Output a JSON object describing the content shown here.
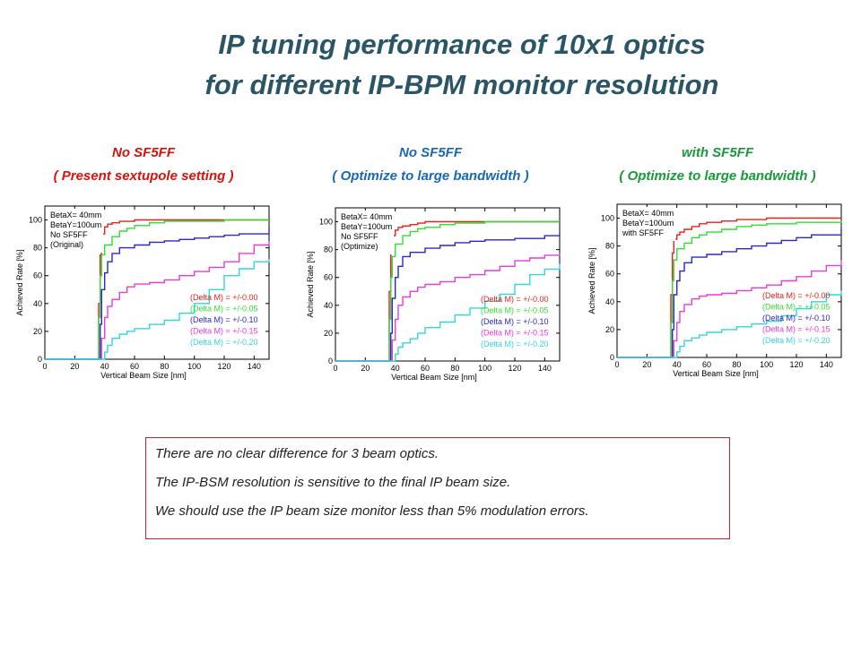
{
  "slide": {
    "title_line1": "IP tuning performance of 10x1 optics",
    "title_line2": "for different IP-BPM monitor resolution"
  },
  "captions": [
    {
      "line1": "No SF5FF",
      "line2": "( Present  sextupole  setting  )",
      "color": "#d8120c"
    },
    {
      "line1": "No SF5FF",
      "line2": "( Optimize  to  large bandwidth )",
      "color": "#1a68b5"
    },
    {
      "line1": "with SF5FF",
      "line2": "( Optimize to large bandwidth )",
      "color": "#179a3a"
    }
  ],
  "note": {
    "lines": [
      "There are no clear difference for 3 beam optics.",
      "The IP-BSM resolution is sensitive to the final IP beam size.",
      "We should use the IP beam size monitor less than 5% modulation errors."
    ]
  },
  "chart_data": [
    {
      "type": "line",
      "xlabel": "Vertical Beam Size [nm]",
      "ylabel": "Achieved Rate [%]",
      "xlim": [
        0,
        150
      ],
      "ylim": [
        0,
        110
      ],
      "xticks": [
        0,
        20,
        40,
        60,
        80,
        100,
        120,
        140
      ],
      "yticks": [
        0,
        20,
        40,
        60,
        80,
        100
      ],
      "annotation": [
        "BetaX= 40mm",
        "BetaY=100um",
        " No SF5FF",
        "(Original)"
      ],
      "series": [
        {
          "name": "(Delta M) = +/-0.00",
          "color": "#e8211b",
          "x": [
            35,
            36,
            37,
            38,
            40,
            42,
            45,
            50,
            55,
            60,
            70,
            80,
            100,
            150
          ],
          "y": [
            0,
            40,
            75,
            90,
            95,
            97,
            98,
            99,
            99,
            100,
            100,
            100,
            100,
            100
          ]
        },
        {
          "name": "(Delta M) = +/-0.05",
          "color": "#33dd33",
          "x": [
            35,
            36,
            37,
            38,
            40,
            45,
            50,
            55,
            60,
            70,
            80,
            90,
            100,
            120,
            150
          ],
          "y": [
            0,
            30,
            60,
            75,
            82,
            88,
            92,
            94,
            96,
            98,
            99,
            99,
            99,
            100,
            100
          ]
        },
        {
          "name": "(Delta M) = +/-0.10",
          "color": "#2828cc",
          "x": [
            36,
            37,
            38,
            40,
            42,
            45,
            50,
            60,
            70,
            80,
            90,
            100,
            110,
            120,
            130,
            150
          ],
          "y": [
            0,
            25,
            50,
            62,
            70,
            76,
            80,
            82,
            84,
            85,
            86,
            87,
            88,
            89,
            90,
            95
          ]
        },
        {
          "name": "(Delta M) = +/-0.15",
          "color": "#e83cd8",
          "x": [
            37,
            38,
            40,
            42,
            45,
            50,
            55,
            60,
            70,
            80,
            90,
            100,
            110,
            120,
            130,
            140,
            150
          ],
          "y": [
            0,
            15,
            30,
            38,
            43,
            48,
            52,
            54,
            55,
            57,
            60,
            63,
            66,
            70,
            76,
            82,
            85
          ]
        },
        {
          "name": "(Delta M) = +/-0.20",
          "color": "#33d6dd",
          "x": [
            38,
            40,
            42,
            45,
            50,
            55,
            60,
            70,
            80,
            90,
            100,
            110,
            120,
            130,
            140,
            150
          ],
          "y": [
            0,
            5,
            10,
            15,
            18,
            20,
            22,
            25,
            28,
            33,
            40,
            50,
            60,
            65,
            70,
            72
          ]
        }
      ]
    },
    {
      "type": "line",
      "xlabel": "Vertical Beam Size [nm]",
      "ylabel": "Achieved Rate [%]",
      "xlim": [
        0,
        150
      ],
      "ylim": [
        0,
        110
      ],
      "xticks": [
        0,
        20,
        40,
        60,
        80,
        100,
        120,
        140
      ],
      "yticks": [
        0,
        20,
        40,
        60,
        80,
        100
      ],
      "annotation": [
        "BetaX= 40mm",
        "BetaY=100um",
        " No SF5FF",
        "(Optimize)"
      ],
      "series": [
        {
          "name": "(Delta M) = +/-0.00",
          "color": "#e8211b",
          "x": [
            35,
            36,
            37,
            38,
            40,
            42,
            45,
            50,
            55,
            60,
            70,
            80,
            100,
            150
          ],
          "y": [
            0,
            50,
            80,
            90,
            94,
            96,
            97,
            98,
            99,
            100,
            100,
            100,
            100,
            100
          ]
        },
        {
          "name": "(Delta M) = +/-0.05",
          "color": "#33dd33",
          "x": [
            35,
            36,
            37,
            38,
            40,
            45,
            50,
            55,
            60,
            70,
            80,
            90,
            100,
            150
          ],
          "y": [
            0,
            30,
            60,
            75,
            84,
            90,
            93,
            95,
            96,
            98,
            99,
            99,
            100,
            100
          ]
        },
        {
          "name": "(Delta M) = +/-0.10",
          "color": "#2828cc",
          "x": [
            36,
            37,
            38,
            40,
            42,
            45,
            50,
            60,
            70,
            80,
            90,
            100,
            120,
            140,
            150
          ],
          "y": [
            0,
            20,
            45,
            60,
            68,
            75,
            78,
            81,
            83,
            85,
            86,
            87,
            88,
            90,
            92
          ]
        },
        {
          "name": "(Delta M) = +/-0.15",
          "color": "#e83cd8",
          "x": [
            37,
            38,
            40,
            42,
            45,
            50,
            55,
            60,
            70,
            80,
            90,
            100,
            110,
            120,
            130,
            140,
            150
          ],
          "y": [
            0,
            15,
            30,
            40,
            46,
            50,
            53,
            55,
            57,
            60,
            62,
            65,
            68,
            72,
            74,
            76,
            77
          ]
        },
        {
          "name": "(Delta M) = +/-0.20",
          "color": "#33d6dd",
          "x": [
            38,
            40,
            42,
            45,
            50,
            55,
            60,
            70,
            80,
            90,
            100,
            110,
            120,
            130,
            140,
            150
          ],
          "y": [
            0,
            5,
            10,
            13,
            16,
            20,
            24,
            28,
            33,
            38,
            43,
            48,
            55,
            62,
            66,
            70
          ]
        }
      ]
    },
    {
      "type": "line",
      "xlabel": "Vertical Beam Size [nm]",
      "ylabel": "Achieved Rate [%]",
      "xlim": [
        0,
        150
      ],
      "ylim": [
        0,
        110
      ],
      "xticks": [
        0,
        20,
        40,
        60,
        80,
        100,
        120,
        140
      ],
      "yticks": [
        0,
        20,
        40,
        60,
        80,
        100
      ],
      "annotation": [
        "BetaX= 40mm",
        "BetaY=100um",
        "with SF5FF"
      ],
      "series": [
        {
          "name": "(Delta M) = +/-0.00",
          "color": "#e8211b",
          "x": [
            35,
            36,
            37,
            38,
            40,
            42,
            45,
            50,
            55,
            60,
            70,
            80,
            100,
            150
          ],
          "y": [
            0,
            45,
            75,
            85,
            88,
            90,
            92,
            94,
            96,
            97,
            98,
            99,
            100,
            100
          ]
        },
        {
          "name": "(Delta M) = +/-0.05",
          "color": "#33dd33",
          "x": [
            35,
            36,
            37,
            38,
            40,
            45,
            50,
            55,
            60,
            70,
            80,
            90,
            100,
            120,
            150
          ],
          "y": [
            0,
            25,
            55,
            70,
            78,
            82,
            86,
            88,
            90,
            92,
            94,
            95,
            96,
            97,
            98
          ]
        },
        {
          "name": "(Delta M) = +/-0.10",
          "color": "#2828cc",
          "x": [
            36,
            37,
            38,
            40,
            42,
            45,
            50,
            60,
            70,
            80,
            90,
            100,
            110,
            120,
            130,
            150
          ],
          "y": [
            0,
            20,
            45,
            55,
            62,
            68,
            72,
            74,
            76,
            78,
            80,
            82,
            84,
            86,
            88,
            92
          ]
        },
        {
          "name": "(Delta M) = +/-0.15",
          "color": "#e83cd8",
          "x": [
            37,
            38,
            40,
            42,
            45,
            50,
            55,
            60,
            70,
            80,
            90,
            100,
            110,
            120,
            130,
            140,
            150
          ],
          "y": [
            0,
            12,
            25,
            33,
            38,
            42,
            44,
            45,
            46,
            48,
            50,
            52,
            55,
            58,
            62,
            66,
            70
          ]
        },
        {
          "name": "(Delta M) = +/-0.20",
          "color": "#33d6dd",
          "x": [
            38,
            40,
            42,
            45,
            50,
            55,
            60,
            70,
            80,
            90,
            100,
            110,
            120,
            130,
            140,
            150
          ],
          "y": [
            0,
            4,
            8,
            12,
            14,
            16,
            18,
            20,
            22,
            24,
            26,
            30,
            35,
            40,
            45,
            48
          ]
        }
      ]
    }
  ]
}
